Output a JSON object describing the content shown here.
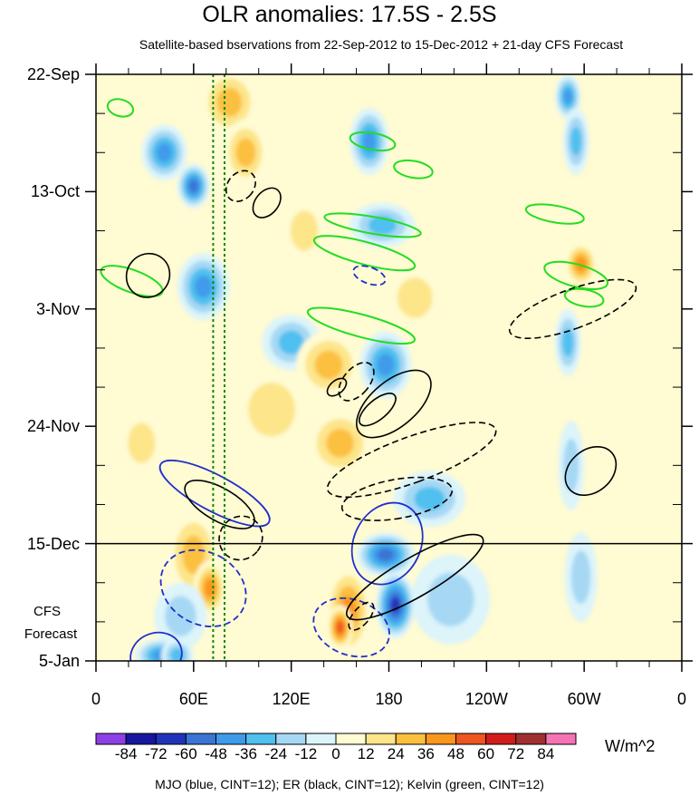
{
  "chart_data": {
    "type": "heatmap",
    "title": "OLR anomalies: 17.5S - 2.5S",
    "subtitle": "Satellite-based bservations from 22-Sep-2012 to 15-Dec-2012 + 21-day CFS Forecast",
    "x_ticks": [
      {
        "lon": 0,
        "label": "0"
      },
      {
        "lon": 60,
        "label": "60E"
      },
      {
        "lon": 120,
        "label": "120E"
      },
      {
        "lon": 180,
        "label": "180"
      },
      {
        "lon": 240,
        "label": "120W"
      },
      {
        "lon": 300,
        "label": "60W"
      },
      {
        "lon": 360,
        "label": "0"
      }
    ],
    "xlim": [
      0,
      360
    ],
    "y_ticks": [
      {
        "day": 0,
        "label": "22-Sep"
      },
      {
        "day": 21,
        "label": "13-Oct"
      },
      {
        "day": 42,
        "label": "3-Nov"
      },
      {
        "day": 63,
        "label": "24-Nov"
      },
      {
        "day": 84,
        "label": "15-Dec"
      },
      {
        "day": 105,
        "label": "5-Jan"
      }
    ],
    "ylim_days": [
      0,
      105
    ],
    "observation_end": "15-Dec",
    "forecast_label": [
      "CFS",
      "Forecast"
    ],
    "colorbar": {
      "levels": [
        -84,
        -72,
        -60,
        -48,
        -36,
        -24,
        -12,
        0,
        12,
        24,
        36,
        48,
        60,
        72,
        84
      ],
      "labels": [
        "-84",
        "-72",
        "-60",
        "-48",
        "-36",
        "-24",
        "-12",
        "0",
        "12",
        "24",
        "36",
        "48",
        "60",
        "72",
        "84"
      ],
      "colors": [
        "#8f3fe6",
        "#1616a0",
        "#2233bb",
        "#3b74d4",
        "#3f9bea",
        "#50c0ef",
        "#a6d8f4",
        "#dcf4fa",
        "#fffbd2",
        "#fde58a",
        "#fcc03f",
        "#f9961e",
        "#ee5520",
        "#d21c1c",
        "#a03030",
        "#f674b6"
      ],
      "units": "W/m^2"
    },
    "anomaly_features": [
      {
        "lon": 42,
        "day": 14,
        "value": -48,
        "dlon": 14,
        "ddays": 5
      },
      {
        "lon": 60,
        "day": 20,
        "value": -60,
        "dlon": 10,
        "ddays": 4
      },
      {
        "lon": 66,
        "day": 38,
        "value": -48,
        "dlon": 16,
        "ddays": 6
      },
      {
        "lon": 82,
        "day": 5,
        "value": 36,
        "dlon": 18,
        "ddays": 6
      },
      {
        "lon": 92,
        "day": 14,
        "value": 36,
        "dlon": 14,
        "ddays": 6
      },
      {
        "lon": 108,
        "day": 60,
        "value": 24,
        "dlon": 24,
        "ddays": 8
      },
      {
        "lon": 120,
        "day": 48,
        "value": -36,
        "dlon": 18,
        "ddays": 5
      },
      {
        "lon": 143,
        "day": 52,
        "value": 36,
        "dlon": 20,
        "ddays": 6
      },
      {
        "lon": 150,
        "day": 66,
        "value": 36,
        "dlon": 20,
        "ddays": 6
      },
      {
        "lon": 155,
        "day": 96,
        "value": 48,
        "dlon": 14,
        "ddays": 8
      },
      {
        "lon": 150,
        "day": 99,
        "value": 60,
        "dlon": 8,
        "ddays": 4
      },
      {
        "lon": 168,
        "day": 12,
        "value": -48,
        "dlon": 12,
        "ddays": 6
      },
      {
        "lon": 176,
        "day": 27,
        "value": -36,
        "dlon": 20,
        "ddays": 4
      },
      {
        "lon": 178,
        "day": 52,
        "value": -48,
        "dlon": 16,
        "ddays": 6
      },
      {
        "lon": 178,
        "day": 86,
        "value": -60,
        "dlon": 18,
        "ddays": 4
      },
      {
        "lon": 184,
        "day": 95,
        "value": -72,
        "dlon": 12,
        "ddays": 6
      },
      {
        "lon": 196,
        "day": 40,
        "value": 24,
        "dlon": 18,
        "ddays": 6
      },
      {
        "lon": 205,
        "day": 76,
        "value": -36,
        "dlon": 22,
        "ddays": 5
      },
      {
        "lon": 218,
        "day": 94,
        "value": -24,
        "dlon": 24,
        "ddays": 8
      },
      {
        "lon": 60,
        "day": 86,
        "value": 36,
        "dlon": 16,
        "ddays": 8
      },
      {
        "lon": 70,
        "day": 92,
        "value": 48,
        "dlon": 10,
        "ddays": 5
      },
      {
        "lon": 52,
        "day": 97,
        "value": -24,
        "dlon": 16,
        "ddays": 6
      },
      {
        "lon": 40,
        "day": 104,
        "value": -48,
        "dlon": 16,
        "ddays": 3
      },
      {
        "lon": 50,
        "day": 104,
        "value": -36,
        "dlon": 10,
        "ddays": 3
      },
      {
        "lon": 290,
        "day": 4,
        "value": -48,
        "dlon": 8,
        "ddays": 4
      },
      {
        "lon": 295,
        "day": 12,
        "value": -36,
        "dlon": 8,
        "ddays": 6
      },
      {
        "lon": 297,
        "day": 37,
        "value": 72,
        "dlon": 6,
        "ddays": 2
      },
      {
        "lon": 298,
        "day": 34,
        "value": 48,
        "dlon": 10,
        "ddays": 4
      },
      {
        "lon": 290,
        "day": 48,
        "value": -36,
        "dlon": 8,
        "ddays": 6
      },
      {
        "lon": 292,
        "day": 70,
        "value": -24,
        "dlon": 8,
        "ddays": 8
      },
      {
        "lon": 298,
        "day": 90,
        "value": -24,
        "dlon": 10,
        "ddays": 8
      },
      {
        "lon": 28,
        "day": 66,
        "value": 24,
        "dlon": 14,
        "ddays": 6
      },
      {
        "lon": 230,
        "day": 10,
        "value": 12,
        "dlon": 40,
        "ddays": 10
      },
      {
        "lon": 128,
        "day": 28,
        "value": 24,
        "dlon": 14,
        "ddays": 6
      }
    ],
    "filtered_contours": {
      "caption": "MJO (blue, CINT=12); ER (black, CINT=12); Kelvin (green, CINT=12)",
      "MJO": [
        {
          "lon": 73,
          "day": 75,
          "dlon": 11,
          "ddays": 11,
          "angle": -62,
          "sign": -1
        },
        {
          "lon": 66,
          "day": 92,
          "dlon": 22,
          "ddays": 8,
          "angle": -60,
          "sign": 1
        },
        {
          "lon": 37,
          "day": 104,
          "dlon": 16,
          "ddays": 4,
          "angle": -20,
          "sign": -1
        },
        {
          "lon": 157,
          "day": 99,
          "dlon": 17,
          "ddays": 7,
          "angle": -70,
          "sign": 1
        },
        {
          "lon": 168,
          "day": 36,
          "dlon": 5,
          "ddays": 3,
          "angle": -70,
          "sign": 1
        },
        {
          "lon": 179,
          "day": 84,
          "dlon": 26,
          "ddays": 6,
          "angle": -64,
          "sign": -1
        }
      ],
      "ER": [
        {
          "lon": 32,
          "day": 36,
          "dlon": 13,
          "ddays": 4,
          "angle": 40,
          "sign": -1
        },
        {
          "lon": 89,
          "day": 20,
          "dlon": 8,
          "ddays": 3,
          "angle": 40,
          "sign": 1
        },
        {
          "lon": 105,
          "day": 23,
          "dlon": 7,
          "ddays": 3,
          "angle": 40,
          "sign": -1
        },
        {
          "lon": 76,
          "day": 77,
          "dlon": 10,
          "ddays": 7,
          "angle": -60,
          "sign": -1
        },
        {
          "lon": 89,
          "day": 83,
          "dlon": 13,
          "ddays": 4,
          "angle": 40,
          "sign": 1
        },
        {
          "lon": 148,
          "day": 56,
          "dlon": 4,
          "ddays": 2,
          "angle": 50,
          "sign": -1
        },
        {
          "lon": 160,
          "day": 55,
          "dlon": 8,
          "ddays": 4,
          "angle": 40,
          "sign": 1
        },
        {
          "lon": 183,
          "day": 59,
          "dlon": 14,
          "ddays": 8,
          "angle": 50,
          "sign": -1
        },
        {
          "lon": 173,
          "day": 60,
          "dlon": 6,
          "ddays": 4,
          "angle": 50,
          "sign": -1
        },
        {
          "lon": 194,
          "day": 69,
          "dlon": 14,
          "ddays": 16,
          "angle": 70,
          "sign": 1
        },
        {
          "lon": 185,
          "day": 76,
          "dlon": 12,
          "ddays": 10,
          "angle": 80,
          "sign": 1
        },
        {
          "lon": 196,
          "day": 90,
          "dlon": 12,
          "ddays": 14,
          "angle": 60,
          "sign": -1
        },
        {
          "lon": 163,
          "day": 97,
          "dlon": 5,
          "ddays": 3,
          "angle": 40,
          "sign": 1
        },
        {
          "lon": 293,
          "day": 42,
          "dlon": 12,
          "ddays": 12,
          "angle": 70,
          "sign": 1
        },
        {
          "lon": 304,
          "day": 71,
          "dlon": 13,
          "ddays": 5,
          "angle": 50,
          "sign": -1
        }
      ],
      "Kelvin": [
        {
          "lon": 15,
          "day": 6,
          "dlon": 8,
          "ddays": 1.5,
          "angle": 15
        },
        {
          "lon": 22,
          "day": 37,
          "dlon": 20,
          "ddays": 2,
          "angle": 20
        },
        {
          "lon": 170,
          "day": 12,
          "dlon": 14,
          "ddays": 1.5,
          "angle": 10
        },
        {
          "lon": 195,
          "day": 17,
          "dlon": 12,
          "ddays": 1.5,
          "angle": 10
        },
        {
          "lon": 170,
          "day": 27,
          "dlon": 30,
          "ddays": 1.5,
          "angle": 10
        },
        {
          "lon": 165,
          "day": 32,
          "dlon": 32,
          "ddays": 2,
          "angle": 15
        },
        {
          "lon": 163,
          "day": 45,
          "dlon": 34,
          "ddays": 2,
          "angle": 15
        },
        {
          "lon": 282,
          "day": 25,
          "dlon": 18,
          "ddays": 1.5,
          "angle": 10
        },
        {
          "lon": 295,
          "day": 36,
          "dlon": 20,
          "ddays": 2,
          "angle": 15
        },
        {
          "lon": 300,
          "day": 40,
          "dlon": 12,
          "ddays": 1.5,
          "angle": 10
        }
      ],
      "reference_lines_lon": [
        72,
        79
      ]
    }
  }
}
